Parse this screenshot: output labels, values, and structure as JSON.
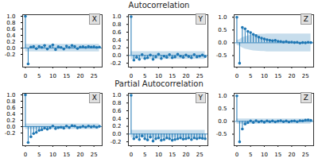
{
  "chart_data": [
    {
      "type": "stem",
      "label": "X",
      "color": "#1f77b4",
      "x": [
        0,
        1,
        2,
        3,
        4,
        5,
        6,
        7,
        8,
        9,
        10,
        11,
        12,
        13,
        14,
        15,
        16,
        17,
        18,
        19,
        20,
        21,
        22,
        23,
        24,
        25,
        26,
        27
      ],
      "values": [
        1,
        -0.5,
        0.03,
        0.05,
        -0.02,
        0.05,
        0.02,
        0.08,
        -0.03,
        0.05,
        0.1,
        -0.05,
        0.04,
        0.02,
        -0.03,
        0.06,
        0.02,
        0.08,
        0.05,
        -0.02,
        0.03,
        0.04,
        0.02,
        0.05,
        0.03,
        0.04,
        0.02,
        0.03
      ],
      "confint": [
        0.12,
        0.12,
        0.12,
        0.12,
        0.12,
        0.12,
        0.12,
        0.12,
        0.12,
        0.12,
        0.12,
        0.12,
        0.12,
        0.12,
        0.12,
        0.12,
        0.12,
        0.12,
        0.12,
        0.12,
        0.12,
        0.12,
        0.12,
        0.12,
        0.12,
        0.12,
        0.12,
        0.12
      ],
      "xlim": [
        -1,
        28
      ],
      "xticks": [
        0,
        5,
        10,
        15,
        20,
        25
      ],
      "ylim": [
        -0.6,
        1.05
      ],
      "yticks": [
        -0.2,
        {
          "value": 0,
          "label": "0.0"
        },
        0.2,
        0.4,
        0.6,
        0.8,
        {
          "value": 1,
          "label": "1.0"
        }
      ]
    },
    {
      "type": "stem",
      "title": "Autocorrelation",
      "label": "Y",
      "color": "#1f77b4",
      "x": [
        0,
        1,
        2,
        3,
        4,
        5,
        6,
        7,
        8,
        9,
        10,
        11,
        12,
        13,
        14,
        15,
        16,
        17,
        18,
        19,
        20,
        21,
        22,
        23,
        24,
        25,
        26,
        27
      ],
      "values": [
        1,
        -0.12,
        -0.05,
        -0.1,
        0.02,
        -0.08,
        -0.06,
        0.01,
        -0.1,
        -0.04,
        0.03,
        -0.08,
        -0.02,
        -0.05,
        0.02,
        -0.06,
        -0.04,
        0.03,
        -0.02,
        -0.05,
        0.01,
        -0.03,
        -0.06,
        0.02,
        -0.04,
        -0.02,
        0.01,
        -0.03
      ],
      "confint": [
        0.1,
        0.1,
        0.1,
        0.1,
        0.1,
        0.1,
        0.1,
        0.1,
        0.1,
        0.1,
        0.1,
        0.1,
        0.1,
        0.1,
        0.1,
        0.1,
        0.1,
        0.1,
        0.1,
        0.1,
        0.1,
        0.1,
        0.1,
        0.1,
        0.1,
        0.1,
        0.1,
        0.1
      ],
      "xlim": [
        -1,
        28
      ],
      "xticks": [
        0,
        5,
        10,
        15,
        20,
        25
      ],
      "ylim": [
        -0.3,
        1.05
      ],
      "yticks": [
        -0.2,
        {
          "value": 0,
          "label": "0.0"
        },
        0.2,
        0.4,
        0.6,
        0.8,
        {
          "value": 1,
          "label": "1.0"
        }
      ]
    },
    {
      "type": "stem",
      "label": "Z",
      "color": "#1f77b4",
      "x": [
        0,
        1,
        2,
        3,
        4,
        5,
        6,
        7,
        8,
        9,
        10,
        11,
        12,
        13,
        14,
        15,
        16,
        17,
        18,
        19,
        20,
        21,
        22,
        23,
        24,
        25,
        26,
        27
      ],
      "values": [
        1,
        -0.8,
        0.6,
        0.55,
        0.45,
        0.4,
        0.33,
        0.28,
        0.22,
        0.18,
        0.15,
        0.12,
        0.1,
        0.08,
        0.1,
        0.06,
        0.05,
        0.03,
        0.05,
        0.02,
        0.03,
        0.01,
        0.02,
        -0.01,
        0.01,
        0,
        0.02,
        0.01
      ],
      "confint": [
        0.1,
        0.12,
        0.2,
        0.24,
        0.27,
        0.29,
        0.31,
        0.32,
        0.33,
        0.34,
        0.34,
        0.35,
        0.35,
        0.35,
        0.35,
        0.35,
        0.35,
        0.35,
        0.35,
        0.35,
        0.35,
        0.35,
        0.35,
        0.35,
        0.35,
        0.35,
        0.35,
        0.35
      ],
      "xlim": [
        -1,
        28
      ],
      "xticks": [
        0,
        5,
        10,
        15,
        20,
        25
      ],
      "ylim": [
        -0.95,
        1.1
      ],
      "yticks": [
        -0.5,
        {
          "value": 0,
          "label": "0.0"
        },
        0.5,
        {
          "value": 1,
          "label": "1.0"
        }
      ]
    },
    {
      "type": "stem",
      "label": "X",
      "color": "#1f77b4",
      "x": [
        0,
        1,
        2,
        3,
        4,
        5,
        6,
        7,
        8,
        9,
        10,
        11,
        12,
        13,
        14,
        15,
        16,
        17,
        18,
        19,
        20,
        21,
        22,
        23,
        24,
        25,
        26,
        27
      ],
      "values": [
        1,
        -0.5,
        -0.32,
        -0.22,
        -0.18,
        -0.12,
        -0.1,
        -0.05,
        -0.08,
        -0.04,
        0.02,
        -0.06,
        -0.03,
        -0.02,
        -0.05,
        0.02,
        -0.03,
        0.03,
        0.02,
        -0.04,
        -0.02,
        0.01,
        -0.02,
        0.02,
        -0.01,
        0.01,
        -0.02,
        0.01
      ],
      "confint": [
        0.09,
        0.09,
        0.09,
        0.09,
        0.09,
        0.09,
        0.09,
        0.09,
        0.09,
        0.09,
        0.09,
        0.09,
        0.09,
        0.09,
        0.09,
        0.09,
        0.09,
        0.09,
        0.09,
        0.09,
        0.09,
        0.09,
        0.09,
        0.09,
        0.09,
        0.09,
        0.09,
        0.09
      ],
      "xlim": [
        -1,
        28
      ],
      "xticks": [
        0,
        5,
        10,
        15,
        20,
        25
      ],
      "ylim": [
        -0.6,
        1.05
      ],
      "yticks": [
        -0.2,
        {
          "value": 0,
          "label": "0.0"
        },
        0.2,
        0.4,
        0.6,
        0.8,
        {
          "value": 1,
          "label": "1.0"
        }
      ]
    },
    {
      "type": "stem",
      "title": "Partial Autocorrelation",
      "label": "Y",
      "color": "#1f77b4",
      "x": [
        0,
        1,
        2,
        3,
        4,
        5,
        6,
        7,
        8,
        9,
        10,
        11,
        12,
        13,
        14,
        15,
        16,
        17,
        18,
        19,
        20,
        21,
        22,
        23,
        24,
        25,
        26,
        27
      ],
      "values": [
        1,
        -0.12,
        -0.08,
        -0.14,
        -0.05,
        -0.12,
        -0.15,
        -0.08,
        -0.18,
        -0.12,
        -0.1,
        -0.16,
        -0.14,
        -0.1,
        -0.12,
        -0.16,
        -0.14,
        -0.12,
        -0.1,
        -0.13,
        -0.12,
        -0.1,
        -0.14,
        -0.1,
        -0.12,
        -0.1,
        -0.11,
        -0.12
      ],
      "confint": [
        0.1,
        0.1,
        0.1,
        0.1,
        0.1,
        0.1,
        0.1,
        0.1,
        0.1,
        0.1,
        0.1,
        0.1,
        0.1,
        0.1,
        0.1,
        0.1,
        0.1,
        0.1,
        0.1,
        0.1,
        0.1,
        0.1,
        0.1,
        0.1,
        0.1,
        0.1,
        0.1,
        0.1
      ],
      "xlim": [
        -1,
        28
      ],
      "xticks": [
        0,
        5,
        10,
        15,
        20,
        25
      ],
      "ylim": [
        -0.3,
        1.05
      ],
      "yticks": [
        -0.2,
        {
          "value": 0,
          "label": "0.0"
        },
        0.2,
        0.4,
        0.6,
        0.8,
        {
          "value": 1,
          "label": "1.0"
        }
      ]
    },
    {
      "type": "stem",
      "label": "Z",
      "color": "#1f77b4",
      "x": [
        0,
        1,
        2,
        3,
        4,
        5,
        6,
        7,
        8,
        9,
        10,
        11,
        12,
        13,
        14,
        15,
        16,
        17,
        18,
        19,
        20,
        21,
        22,
        23,
        24,
        25,
        26,
        27
      ],
      "values": [
        1,
        -0.8,
        -0.3,
        -0.1,
        -0.05,
        0.02,
        -0.04,
        0.03,
        -0.02,
        0.01,
        -0.03,
        0.02,
        -0.01,
        0.02,
        -0.02,
        0.01,
        0.03,
        -0.01,
        0.02,
        -0.02,
        0.01,
        0.02,
        -0.01,
        0.03,
        0.02,
        0.05,
        0.06,
        0.04
      ],
      "confint": [
        0.1,
        0.1,
        0.1,
        0.1,
        0.1,
        0.1,
        0.1,
        0.1,
        0.1,
        0.1,
        0.1,
        0.1,
        0.1,
        0.1,
        0.1,
        0.1,
        0.1,
        0.1,
        0.1,
        0.1,
        0.1,
        0.1,
        0.1,
        0.1,
        0.1,
        0.1,
        0.1,
        0.1
      ],
      "xlim": [
        -1,
        28
      ],
      "xticks": [
        0,
        5,
        10,
        15,
        20,
        25
      ],
      "ylim": [
        -0.95,
        1.1
      ],
      "yticks": [
        -0.5,
        {
          "value": 0,
          "label": "0.0"
        },
        0.5,
        {
          "value": 1,
          "label": "1.0"
        }
      ]
    }
  ]
}
